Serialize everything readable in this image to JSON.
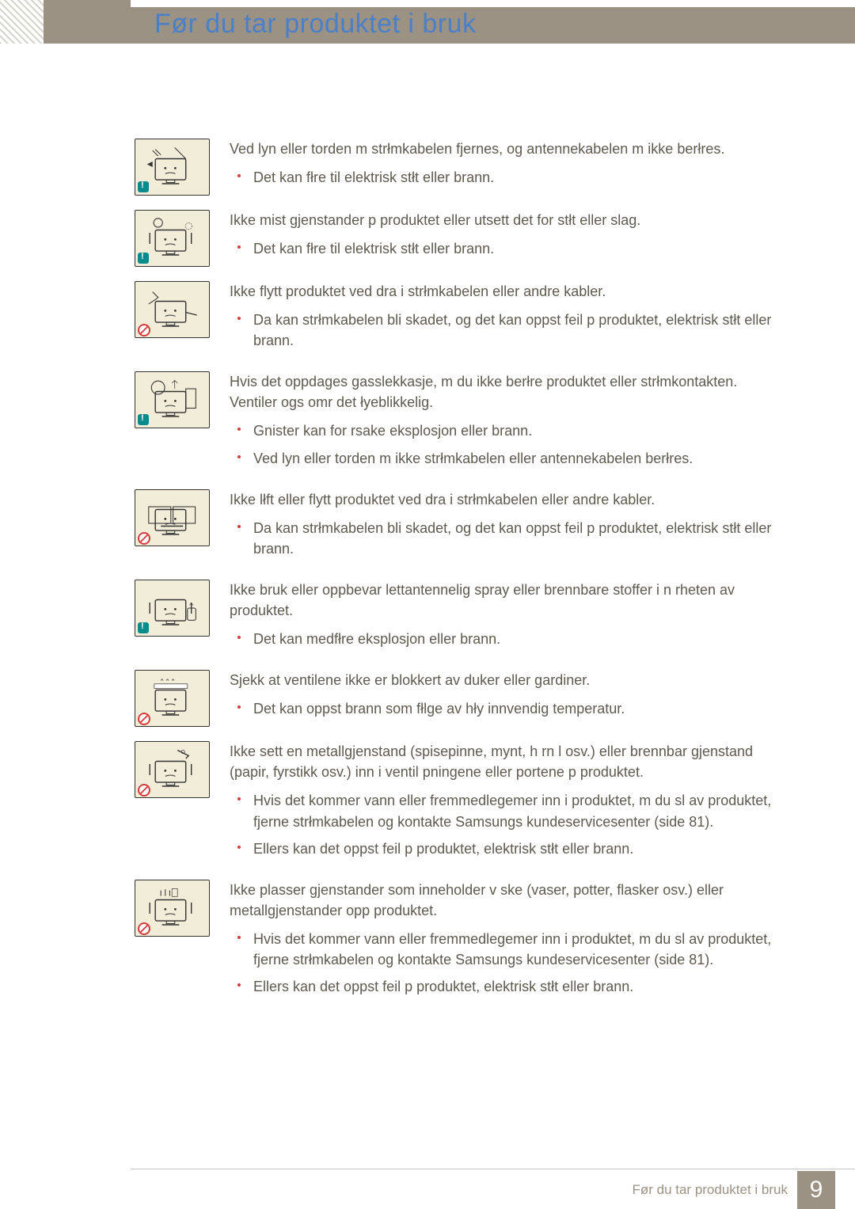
{
  "title": "Før du tar produktet i bruk",
  "footer_text": "Før du tar produktet i bruk",
  "page_number": "9",
  "items": [
    {
      "badge": "caution",
      "intro": "Ved lyn eller torden m  strłmkabelen fjernes, og antennekabelen m  ikke berłres.",
      "bullets": [
        "Det kan fłre til elektrisk stłt eller brann."
      ]
    },
    {
      "badge": "caution",
      "intro": "Ikke mist gjenstander p  produktet eller utsett det for stłt eller slag.",
      "bullets": [
        "Det kan fłre til elektrisk stłt eller brann."
      ]
    },
    {
      "badge": "prohibit",
      "intro": "Ikke flytt produktet ved   dra i strłmkabelen eller andre kabler.",
      "bullets": [
        "Da kan strłmkabelen bli skadet, og det kan oppst  feil p  produktet, elektrisk stłt eller brann."
      ]
    },
    {
      "badge": "caution",
      "intro": "Hvis det oppdages gasslekkasje, m  du ikke berłre produktet eller strłmkontakten. Ventiler ogs  omr det łyeblikkelig.",
      "bullets": [
        "Gnister kan for rsake eksplosjon eller brann.",
        "Ved lyn eller torden m  ikke strłmkabelen eller antennekabelen berłres."
      ]
    },
    {
      "badge": "prohibit",
      "intro": "Ikke lłft eller flytt produktet ved   dra i strłmkabelen eller andre kabler.",
      "bullets": [
        "Da kan strłmkabelen bli skadet, og det kan oppst  feil p  produktet, elektrisk stłt eller brann."
      ]
    },
    {
      "badge": "caution",
      "intro": "Ikke bruk eller oppbevar lettantennelig spray eller brennbare stoffer i n rheten av produktet.",
      "bullets": [
        "Det kan medfłre eksplosjon eller brann."
      ]
    },
    {
      "badge": "prohibit",
      "intro": "Sjekk at ventilene ikke er blokkert av duker eller gardiner.",
      "bullets": [
        "Det kan oppst  brann som fłlge av hły innvendig temperatur."
      ]
    },
    {
      "badge": "prohibit",
      "intro": "Ikke sett en metallgjenstand (spisepinne, mynt, h rn l osv.) eller brennbar gjenstand (papir, fyrstikk osv.) inn i ventil pningene eller portene p  produktet.",
      "bullets": [
        "Hvis det kommer vann eller fremmedlegemer inn i produktet, m  du sl  av produktet, fjerne strłmkabelen og kontakte Samsungs kundeservicesenter (side 81).",
        "Ellers kan det oppst  feil p  produktet, elektrisk stłt eller brann."
      ]
    },
    {
      "badge": "prohibit",
      "intro": "Ikke plasser gjenstander som inneholder v ske (vaser, potter, flasker osv.) eller metallgjenstander opp  produktet.",
      "bullets": [
        "Hvis det kommer vann eller fremmedlegemer inn i produktet, m  du sl  av produktet, fjerne strłmkabelen og kontakte Samsungs kundeservicesenter (side 81).",
        "Ellers kan det oppst  feil p  produktet, elektrisk stłt eller brann."
      ]
    }
  ]
}
